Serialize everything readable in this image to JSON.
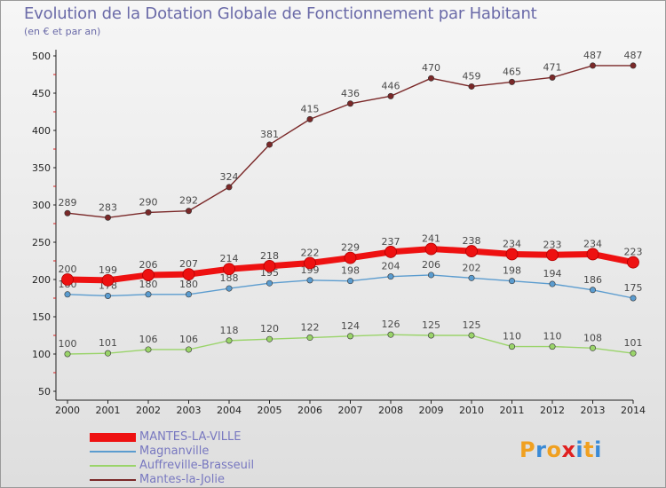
{
  "header": {
    "title": "Evolution de la Dotation Globale de Fonctionnement par Habitant",
    "subtitle": "(en € et par an)"
  },
  "logo": {
    "text": "Proxiti",
    "letters": [
      "P",
      "r",
      "o",
      "x",
      "i",
      "t",
      "i"
    ],
    "colors": [
      "#f0a020",
      "#3a8ad6",
      "#f0a020",
      "#e02020",
      "#3a8ad6",
      "#f0a020",
      "#3a8ad6"
    ]
  },
  "chart_data": {
    "type": "line",
    "title": "Evolution de la Dotation Globale de Fonctionnement par Habitant",
    "subtitle": "(en € et par an)",
    "xlabel": "",
    "ylabel": "",
    "x": [
      "2000",
      "2001",
      "2002",
      "2003",
      "2004",
      "2005",
      "2006",
      "2007",
      "2008",
      "2009",
      "2010",
      "2011",
      "2012",
      "2013",
      "2014"
    ],
    "ylim": [
      50,
      500
    ],
    "yticks": [
      "50",
      "100",
      "150",
      "200",
      "250",
      "300",
      "350",
      "400",
      "450",
      "500"
    ],
    "grid": false,
    "legend": "bottom-left",
    "series": [
      {
        "name": "Mantes-la-Jolie",
        "color": "#7a2828",
        "values": [
          289,
          283,
          290,
          292,
          324,
          381,
          415,
          436,
          446,
          470,
          459,
          465,
          471,
          487,
          487
        ],
        "labels": [
          "289",
          "283",
          "290",
          "292",
          "324",
          "381",
          "415",
          "436",
          "446",
          "470",
          "459",
          "465",
          "471",
          "487",
          "487"
        ]
      },
      {
        "name": "Auffreville-Brasseuil",
        "color": "#9ad46a",
        "values": [
          100,
          101,
          106,
          106,
          118,
          120,
          122,
          124,
          126,
          125,
          125,
          110,
          110,
          108,
          101
        ],
        "labels": [
          "100",
          "101",
          "106",
          "106",
          "118",
          "120",
          "122",
          "124",
          "126",
          "125",
          "125",
          "110",
          "110",
          "108",
          "101"
        ]
      },
      {
        "name": "Magnanville",
        "color": "#5b9ccf",
        "values": [
          180,
          178,
          180,
          180,
          188,
          195,
          199,
          198,
          204,
          206,
          202,
          198,
          194,
          186,
          175
        ],
        "labels": [
          "180",
          "178",
          "180",
          "180",
          "188",
          "195",
          "199",
          "198",
          "204",
          "206",
          "202",
          "198",
          "194",
          "186",
          "175"
        ]
      },
      {
        "name": "MANTES-LA-VILLE",
        "color": "#ee1111",
        "values": [
          200,
          199,
          206,
          207,
          214,
          218,
          222,
          229,
          237,
          241,
          238,
          234,
          233,
          234,
          223
        ],
        "labels": [
          "200",
          "199",
          "206",
          "207",
          "214",
          "218",
          "222",
          "229",
          "237",
          "241",
          "238",
          "234",
          "233",
          "234",
          "223"
        ]
      }
    ],
    "legend_order": [
      "MANTES-LA-VILLE",
      "Magnanville",
      "Auffreville-Brasseuil",
      "Mantes-la-Jolie"
    ]
  }
}
